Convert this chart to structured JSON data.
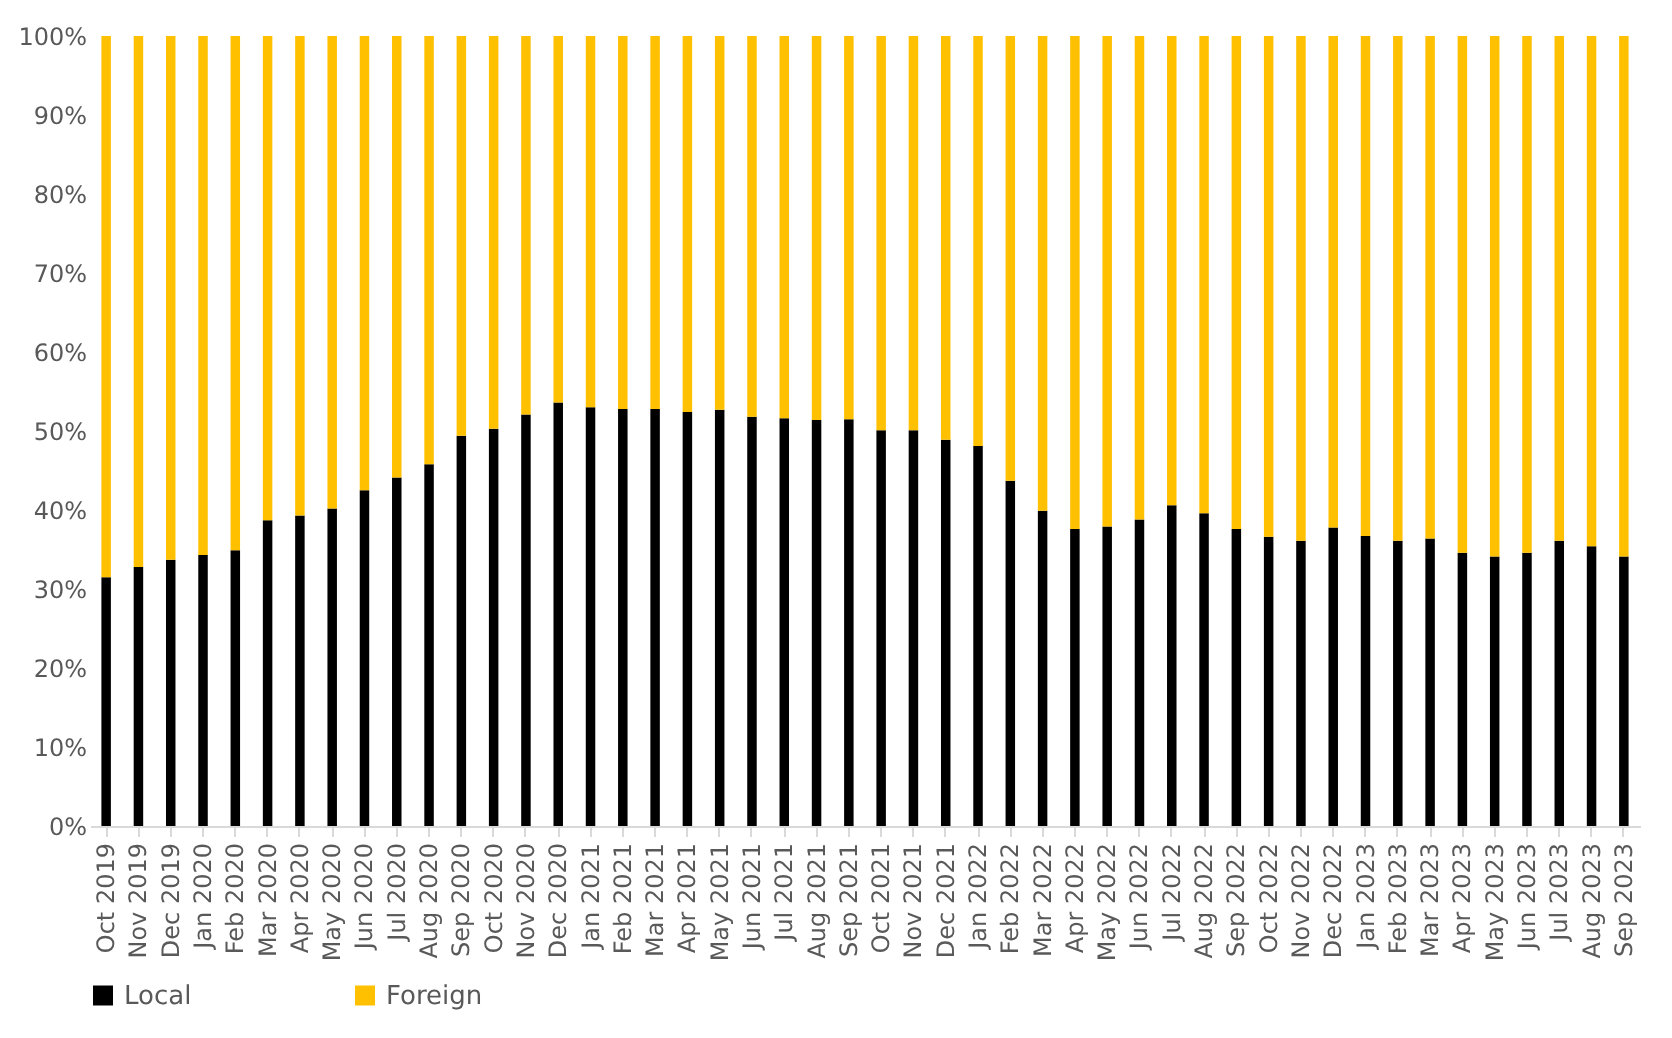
{
  "chart_data": {
    "type": "bar",
    "stacked": true,
    "categories": [
      "Oct 2019",
      "Nov 2019",
      "Dec 2019",
      "Jan 2020",
      "Feb 2020",
      "Mar 2020",
      "Apr 2020",
      "May 2020",
      "Jun 2020",
      "Jul 2020",
      "Aug 2020",
      "Sep 2020",
      "Oct 2020",
      "Nov 2020",
      "Dec 2020",
      "Jan 2021",
      "Feb 2021",
      "Mar 2021",
      "Apr 2021",
      "May 2021",
      "Jun 2021",
      "Jul 2021",
      "Aug 2021",
      "Sep 2021",
      "Oct 2021",
      "Nov 2021",
      "Dec 2021",
      "Jan 2022",
      "Feb 2022",
      "Mar 2022",
      "Apr 2022",
      "May 2022",
      "Jun 2022",
      "Jul 2022",
      "Aug 2022",
      "Sep 2022",
      "Oct 2022",
      "Nov 2022",
      "Dec 2022",
      "Jan 2023",
      "Feb 2023",
      "Mar 2023",
      "Apr 2023",
      "May 2023",
      "Jun 2023",
      "Jul 2023",
      "Aug 2023",
      "Sep 2023"
    ],
    "series": [
      {
        "name": "Local",
        "color": "#000000",
        "values": [
          31.5,
          32.8,
          33.7,
          34.3,
          34.9,
          38.7,
          39.3,
          40.2,
          42.5,
          44.1,
          45.8,
          49.4,
          50.3,
          52.1,
          53.6,
          53.0,
          52.8,
          52.8,
          52.4,
          52.7,
          51.8,
          51.6,
          51.4,
          51.5,
          50.1,
          50.1,
          48.9,
          48.1,
          43.7,
          39.9,
          37.6,
          37.9,
          38.8,
          40.6,
          39.6,
          37.6,
          36.6,
          36.1,
          37.8,
          36.7,
          36.1,
          36.4,
          34.6,
          34.1,
          34.6,
          36.1,
          35.4,
          34.1
        ]
      },
      {
        "name": "Foreign",
        "color": "#ffc000",
        "values": [
          68.5,
          67.2,
          66.3,
          65.7,
          65.1,
          61.3,
          60.7,
          59.8,
          57.5,
          55.9,
          54.2,
          50.6,
          49.7,
          47.9,
          46.4,
          47.0,
          47.2,
          47.2,
          47.6,
          47.3,
          48.2,
          48.4,
          48.6,
          48.5,
          49.9,
          49.9,
          51.1,
          51.9,
          56.3,
          60.1,
          62.4,
          62.1,
          61.2,
          59.4,
          60.4,
          62.4,
          63.4,
          63.9,
          62.2,
          63.3,
          63.9,
          63.6,
          65.4,
          65.9,
          65.4,
          63.9,
          64.6,
          65.9
        ]
      }
    ],
    "ylim": [
      0,
      100
    ],
    "yticks": [
      {
        "value": 0,
        "label": "0%"
      },
      {
        "value": 10,
        "label": "10%"
      },
      {
        "value": 20,
        "label": "20%"
      },
      {
        "value": 30,
        "label": "30%"
      },
      {
        "value": 40,
        "label": "40%"
      },
      {
        "value": 50,
        "label": "50%"
      },
      {
        "value": 60,
        "label": "60%"
      },
      {
        "value": 70,
        "label": "70%"
      },
      {
        "value": 80,
        "label": "80%"
      },
      {
        "value": 90,
        "label": "90%"
      },
      {
        "value": 100,
        "label": "100%"
      }
    ],
    "legend": "bottom"
  }
}
